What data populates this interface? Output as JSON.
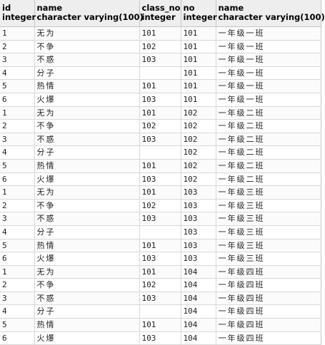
{
  "columns": [
    {
      "name": "id",
      "type": "integer"
    },
    {
      "name": "name",
      "type": "character varying(100)"
    },
    {
      "name": "class_no",
      "type": "integer"
    },
    {
      "name": "no",
      "type": "integer"
    },
    {
      "name": "name",
      "type": "character varying(100)"
    }
  ],
  "rows": [
    [
      "1",
      "无为",
      "101",
      "101",
      "一年级一班"
    ],
    [
      "2",
      "不争",
      "102",
      "101",
      "一年级一班"
    ],
    [
      "3",
      "不惑",
      "103",
      "101",
      "一年级一班"
    ],
    [
      "4",
      "分子",
      "",
      "101",
      "一年级一班"
    ],
    [
      "5",
      "热情",
      "101",
      "101",
      "一年级一班"
    ],
    [
      "6",
      "火爆",
      "103",
      "101",
      "一年级一班"
    ],
    [
      "1",
      "无为",
      "101",
      "102",
      "一年级二班"
    ],
    [
      "2",
      "不争",
      "102",
      "102",
      "一年级二班"
    ],
    [
      "3",
      "不惑",
      "103",
      "102",
      "一年级二班"
    ],
    [
      "4",
      "分子",
      "",
      "102",
      "一年级二班"
    ],
    [
      "5",
      "热情",
      "101",
      "102",
      "一年级二班"
    ],
    [
      "6",
      "火爆",
      "103",
      "102",
      "一年级二班"
    ],
    [
      "1",
      "无为",
      "101",
      "103",
      "一年级三班"
    ],
    [
      "2",
      "不争",
      "102",
      "103",
      "一年级三班"
    ],
    [
      "3",
      "不惑",
      "103",
      "103",
      "一年级三班"
    ],
    [
      "4",
      "分子",
      "",
      "103",
      "一年级三班"
    ],
    [
      "5",
      "热情",
      "101",
      "103",
      "一年级三班"
    ],
    [
      "6",
      "火爆",
      "103",
      "103",
      "一年级三班"
    ],
    [
      "1",
      "无为",
      "101",
      "104",
      "一年级四班"
    ],
    [
      "2",
      "不争",
      "102",
      "104",
      "一年级四班"
    ],
    [
      "3",
      "不惑",
      "103",
      "104",
      "一年级四班"
    ],
    [
      "4",
      "分子",
      "",
      "104",
      "一年级四班"
    ],
    [
      "5",
      "热情",
      "101",
      "104",
      "一年级四班"
    ],
    [
      "6",
      "火爆",
      "103",
      "104",
      "一年级四班"
    ]
  ]
}
